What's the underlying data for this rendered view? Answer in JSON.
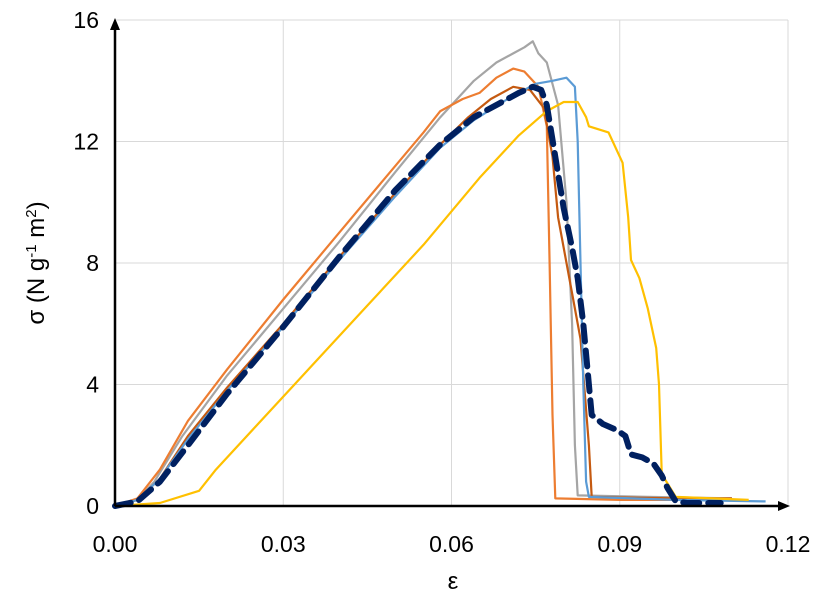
{
  "chart_data": {
    "type": "line",
    "title": "",
    "xlabel": "ε",
    "ylabel_parts": [
      "σ (N g",
      "-1",
      " m",
      "2",
      ")"
    ],
    "xlim": [
      0,
      0.12
    ],
    "ylim": [
      0,
      16
    ],
    "x_ticks": [
      "0.00",
      "0.03",
      "0.06",
      "0.09",
      "0.12"
    ],
    "y_ticks": [
      "0",
      "4",
      "8",
      "12",
      "16"
    ],
    "grid": true,
    "legend": "none",
    "series": [
      {
        "color": "#A5A5A5",
        "style": "solid",
        "points": [
          [
            0,
            0
          ],
          [
            0.004,
            0.2
          ],
          [
            0.007,
            0.8
          ],
          [
            0.012,
            2.3
          ],
          [
            0.02,
            4.3
          ],
          [
            0.03,
            6.5
          ],
          [
            0.04,
            8.7
          ],
          [
            0.05,
            11.0
          ],
          [
            0.058,
            12.8
          ],
          [
            0.064,
            14.0
          ],
          [
            0.068,
            14.6
          ],
          [
            0.071,
            14.9
          ],
          [
            0.073,
            15.1
          ],
          [
            0.0745,
            15.3
          ],
          [
            0.0755,
            14.9
          ],
          [
            0.077,
            14.6
          ],
          [
            0.079,
            13.2
          ],
          [
            0.0805,
            10.0
          ],
          [
            0.0815,
            6.0
          ],
          [
            0.082,
            2.0
          ],
          [
            0.0825,
            0.35
          ],
          [
            0.095,
            0.3
          ],
          [
            0.11,
            0.25
          ]
        ]
      },
      {
        "color": "#ED7D31",
        "style": "solid",
        "points": [
          [
            0,
            0
          ],
          [
            0.004,
            0.25
          ],
          [
            0.008,
            1.2
          ],
          [
            0.013,
            2.8
          ],
          [
            0.02,
            4.5
          ],
          [
            0.03,
            6.8
          ],
          [
            0.04,
            9.0
          ],
          [
            0.05,
            11.2
          ],
          [
            0.055,
            12.3
          ],
          [
            0.058,
            13.0
          ],
          [
            0.062,
            13.4
          ],
          [
            0.065,
            13.6
          ],
          [
            0.068,
            14.1
          ],
          [
            0.071,
            14.4
          ],
          [
            0.073,
            14.3
          ],
          [
            0.0755,
            13.8
          ],
          [
            0.077,
            12.5
          ],
          [
            0.0775,
            8.0
          ],
          [
            0.078,
            3.0
          ],
          [
            0.0785,
            0.25
          ],
          [
            0.09,
            0.2
          ],
          [
            0.11,
            0.2
          ]
        ]
      },
      {
        "color": "#C55A11",
        "style": "solid",
        "points": [
          [
            0,
            0
          ],
          [
            0.004,
            0.2
          ],
          [
            0.008,
            0.9
          ],
          [
            0.013,
            2.3
          ],
          [
            0.02,
            3.9
          ],
          [
            0.03,
            6.0
          ],
          [
            0.04,
            8.2
          ],
          [
            0.05,
            10.3
          ],
          [
            0.058,
            11.9
          ],
          [
            0.063,
            12.8
          ],
          [
            0.067,
            13.4
          ],
          [
            0.071,
            13.8
          ],
          [
            0.074,
            13.7
          ],
          [
            0.0765,
            13.1
          ],
          [
            0.078,
            11.5
          ],
          [
            0.079,
            9.5
          ],
          [
            0.0805,
            8.0
          ],
          [
            0.083,
            5.5
          ],
          [
            0.0845,
            2.0
          ],
          [
            0.085,
            0.3
          ],
          [
            0.1,
            0.25
          ],
          [
            0.11,
            0.25
          ]
        ]
      },
      {
        "color": "#5B9BD5",
        "style": "solid",
        "points": [
          [
            0,
            0
          ],
          [
            0.004,
            0.2
          ],
          [
            0.008,
            0.9
          ],
          [
            0.013,
            2.2
          ],
          [
            0.02,
            3.8
          ],
          [
            0.03,
            5.9
          ],
          [
            0.04,
            8.1
          ],
          [
            0.05,
            10.2
          ],
          [
            0.058,
            11.8
          ],
          [
            0.064,
            12.7
          ],
          [
            0.07,
            13.4
          ],
          [
            0.075,
            13.9
          ],
          [
            0.078,
            14.0
          ],
          [
            0.0805,
            14.1
          ],
          [
            0.082,
            13.8
          ],
          [
            0.0825,
            12.0
          ],
          [
            0.083,
            8.0
          ],
          [
            0.0835,
            4.0
          ],
          [
            0.084,
            0.8
          ],
          [
            0.0845,
            0.3
          ],
          [
            0.1,
            0.2
          ],
          [
            0.116,
            0.15
          ]
        ]
      },
      {
        "color": "#FFC000",
        "style": "solid",
        "points": [
          [
            0,
            0
          ],
          [
            0.008,
            0.1
          ],
          [
            0.015,
            0.5
          ],
          [
            0.018,
            1.2
          ],
          [
            0.025,
            2.6
          ],
          [
            0.035,
            4.6
          ],
          [
            0.045,
            6.6
          ],
          [
            0.055,
            8.6
          ],
          [
            0.065,
            10.8
          ],
          [
            0.072,
            12.2
          ],
          [
            0.077,
            13.0
          ],
          [
            0.08,
            13.3
          ],
          [
            0.0825,
            13.3
          ],
          [
            0.084,
            12.8
          ],
          [
            0.0845,
            12.5
          ],
          [
            0.088,
            12.3
          ],
          [
            0.0905,
            11.3
          ],
          [
            0.0915,
            9.5
          ],
          [
            0.092,
            8.1
          ],
          [
            0.0935,
            7.5
          ],
          [
            0.095,
            6.5
          ],
          [
            0.0965,
            5.2
          ],
          [
            0.097,
            4.0
          ],
          [
            0.0975,
            1.0
          ],
          [
            0.098,
            0.9
          ],
          [
            0.1,
            0.3
          ],
          [
            0.113,
            0.2
          ]
        ]
      },
      {
        "color": "#002060",
        "style": "dashed",
        "points": [
          [
            0,
            0
          ],
          [
            0.004,
            0.15
          ],
          [
            0.008,
            0.8
          ],
          [
            0.013,
            2.0
          ],
          [
            0.02,
            3.7
          ],
          [
            0.03,
            5.9
          ],
          [
            0.04,
            8.2
          ],
          [
            0.05,
            10.4
          ],
          [
            0.058,
            11.9
          ],
          [
            0.064,
            12.8
          ],
          [
            0.069,
            13.3
          ],
          [
            0.072,
            13.6
          ],
          [
            0.0745,
            13.8
          ],
          [
            0.076,
            13.7
          ],
          [
            0.077,
            13.2
          ],
          [
            0.0785,
            11.5
          ],
          [
            0.08,
            9.8
          ],
          [
            0.0815,
            8.5
          ],
          [
            0.0825,
            7.5
          ],
          [
            0.0835,
            6.0
          ],
          [
            0.0845,
            4.0
          ],
          [
            0.085,
            3.0
          ],
          [
            0.087,
            2.7
          ],
          [
            0.0895,
            2.5
          ],
          [
            0.091,
            2.3
          ],
          [
            0.092,
            1.7
          ],
          [
            0.094,
            1.6
          ],
          [
            0.096,
            1.4
          ],
          [
            0.0975,
            1.0
          ],
          [
            0.0985,
            0.6
          ],
          [
            0.1,
            0.15
          ],
          [
            0.102,
            0.1
          ],
          [
            0.108,
            0.1
          ]
        ]
      }
    ]
  }
}
